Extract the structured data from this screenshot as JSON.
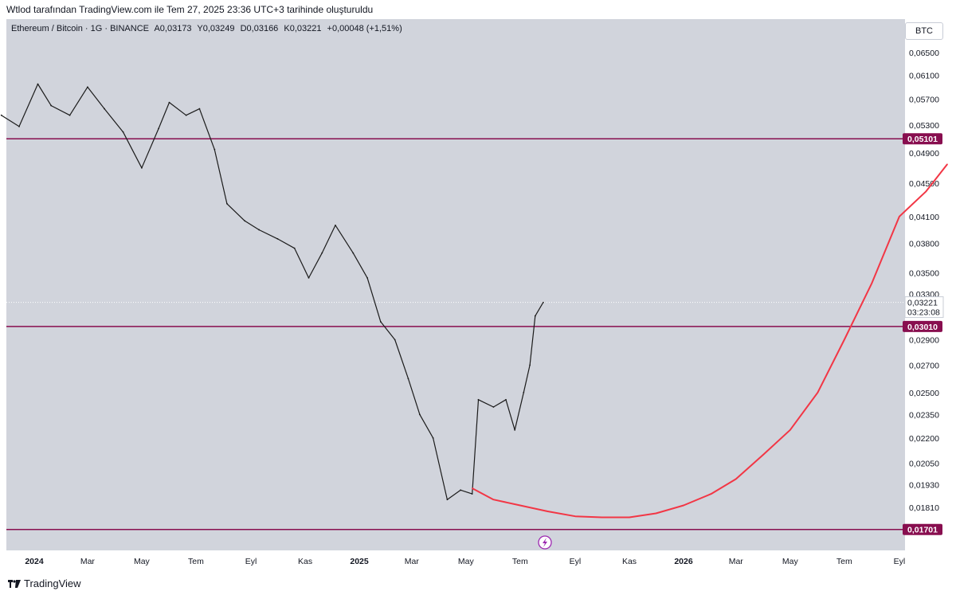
{
  "header": {
    "title": "Wtlod tarafından TradingView.com ile Tem 27, 2025 23:36 UTC+3 tarihinde oluşturuldu"
  },
  "symbol": {
    "name": "Ethereum / Bitcoin · 1G · BINANCE",
    "open": "A0,03173",
    "high": "Y0,03249",
    "low": "D0,03166",
    "close": "K0,03221",
    "change": "+0,00048 (+1,51%)"
  },
  "currency_label": "BTC",
  "footer": {
    "brand": "TradingView"
  },
  "chart_data": {
    "type": "line",
    "series": [
      {
        "x": [
          "2023-11-25",
          "2023-12-15",
          "2024-01-05",
          "2024-01-20",
          "2024-02-10",
          "2024-03-01",
          "2024-03-20",
          "2024-04-10",
          "2024-05-01",
          "2024-05-20",
          "2024-06-01",
          "2024-06-20",
          "2024-07-05",
          "2024-07-22",
          "2024-08-05",
          "2024-08-25",
          "2024-09-10",
          "2024-10-01",
          "2024-10-20",
          "2024-11-05",
          "2024-11-20",
          "2024-12-05",
          "2024-12-25",
          "2025-01-10",
          "2025-01-25",
          "2025-02-10",
          "2025-02-25",
          "2025-03-10",
          "2025-03-25",
          "2025-04-10",
          "2025-04-25",
          "2025-05-08",
          "2025-05-15",
          "2025-06-01",
          "2025-06-15",
          "2025-06-25",
          "2025-07-05",
          "2025-07-12",
          "2025-07-18",
          "2025-07-27"
        ],
        "values": [
          0.0545,
          0.0528,
          0.0595,
          0.056,
          0.0545,
          0.059,
          0.0555,
          0.052,
          0.047,
          0.0525,
          0.0565,
          0.0545,
          0.0555,
          0.0495,
          0.0425,
          0.0405,
          0.0395,
          0.0385,
          0.0375,
          0.0345,
          0.037,
          0.04,
          0.037,
          0.0345,
          0.0305,
          0.029,
          0.026,
          0.0235,
          0.022,
          0.0185,
          0.019,
          0.0188,
          0.0245,
          0.024,
          0.0245,
          0.0225,
          0.025,
          0.027,
          0.031,
          0.0322
        ]
      },
      {
        "x": [
          "2025-05-08",
          "2025-06-01",
          "2025-07-01",
          "2025-08-01",
          "2025-09-01",
          "2025-10-01",
          "2025-11-01",
          "2025-12-01",
          "2026-01-01",
          "2026-02-01",
          "2026-03-01",
          "2026-04-01",
          "2026-05-01",
          "2026-06-01",
          "2026-07-01",
          "2026-08-01",
          "2026-09-01",
          "2026-10-01",
          "2026-10-25"
        ],
        "values": [
          0.0191,
          0.0185,
          0.0182,
          0.0179,
          0.01765,
          0.0176,
          0.0176,
          0.0178,
          0.0182,
          0.0188,
          0.0196,
          0.021,
          0.0225,
          0.025,
          0.029,
          0.034,
          0.041,
          0.044,
          0.0475
        ]
      }
    ],
    "horizontal_lines": [
      {
        "value": 0.05101,
        "label": "0,05101"
      },
      {
        "value": 0.0301,
        "label": "0,03010"
      },
      {
        "value": 0.01701,
        "label": "0,01701"
      }
    ],
    "current_price": {
      "value": 0.03221,
      "label": "0,03221",
      "countdown": "03:23:08"
    },
    "y_ticks": [
      0.065,
      0.061,
      0.057,
      0.053,
      0.049,
      0.045,
      0.041,
      0.038,
      0.035,
      0.033,
      0.029,
      0.027,
      0.025,
      0.0235,
      0.022,
      0.0205,
      0.0193,
      0.0181
    ],
    "y_tick_labels": [
      "0,06500",
      "0,06100",
      "0,05700",
      "0,05300",
      "0,04900",
      "0,04500",
      "0,04100",
      "0,03800",
      "0,03500",
      "0,03300",
      "0,02900",
      "0,02700",
      "0,02500",
      "0,02350",
      "0,02200",
      "0,02050",
      "0,01930",
      "0,01810"
    ],
    "x_ticks": [
      {
        "date": "2024-01-01",
        "label": "2024",
        "bold": true
      },
      {
        "date": "2024-03-01",
        "label": "Mar"
      },
      {
        "date": "2024-05-01",
        "label": "May"
      },
      {
        "date": "2024-07-01",
        "label": "Tem"
      },
      {
        "date": "2024-09-01",
        "label": "Eyl"
      },
      {
        "date": "2024-11-01",
        "label": "Kas"
      },
      {
        "date": "2025-01-01",
        "label": "2025",
        "bold": true
      },
      {
        "date": "2025-03-01",
        "label": "Mar"
      },
      {
        "date": "2025-05-01",
        "label": "May"
      },
      {
        "date": "2025-07-01",
        "label": "Tem"
      },
      {
        "date": "2025-09-01",
        "label": "Eyl"
      },
      {
        "date": "2025-11-01",
        "label": "Kas"
      },
      {
        "date": "2026-01-01",
        "label": "2026",
        "bold": true
      },
      {
        "date": "2026-03-01",
        "label": "Mar"
      },
      {
        "date": "2026-05-01",
        "label": "May"
      },
      {
        "date": "2026-07-01",
        "label": "Tem"
      },
      {
        "date": "2026-09-01",
        "label": "Eyl"
      }
    ],
    "y_scale": "log",
    "grid": false,
    "colors": {
      "price": "#1b1b1b",
      "projection": "#f23645",
      "levels": "#880e4f",
      "background": "#d1d4dc"
    }
  }
}
